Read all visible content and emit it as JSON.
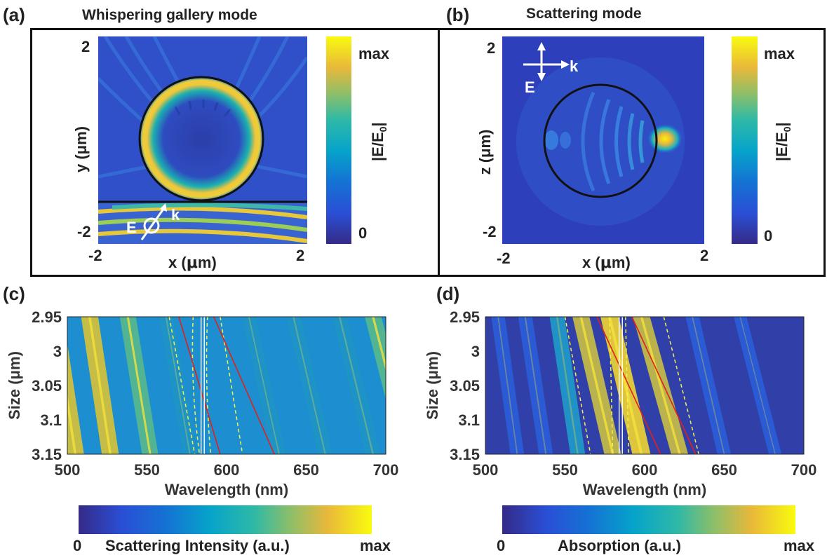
{
  "panel_a": {
    "label": "(a)",
    "title": "Whispering gallery mode",
    "xlabel_prefix": "x (",
    "xlabel_mu": "μ",
    "xlabel_suffix": "m)",
    "ylabel": "y (μm)",
    "x_ticks": [
      "-2",
      "2"
    ],
    "y_ticks": [
      "2",
      "-2"
    ],
    "field_labels": {
      "E": "E",
      "k": "k"
    },
    "colorbar": {
      "max": "max",
      "min": "0",
      "label_main": "|E/E",
      "label_sub": "0",
      "label_end": "|"
    }
  },
  "panel_b": {
    "label": "(b)",
    "title": "Scattering mode",
    "xlabel_prefix": "x (",
    "xlabel_mu": "μ",
    "xlabel_suffix": "m)",
    "ylabel": "z (μm)",
    "x_ticks": [
      "-2",
      "2"
    ],
    "y_ticks": [
      "2",
      "-2"
    ],
    "field_labels": {
      "E": "E",
      "k": "k"
    },
    "colorbar": {
      "max": "max",
      "min": "0",
      "label_main": "|E/E",
      "label_sub": "0",
      "label_end": "|"
    }
  },
  "panel_c": {
    "label": "(c)",
    "colorbar_min": "0",
    "colorbar_label": "Scattering Intensity (a.u.)",
    "colorbar_max": "max"
  },
  "panel_d": {
    "label": "(d)",
    "colorbar_min": "0",
    "colorbar_label": "Absorption (a.u.)",
    "colorbar_max": "max"
  },
  "colors": {
    "viridis_low": "#3b2f8f",
    "viridis_mid": "#1fa3b5",
    "viridis_high": "#f9f30a",
    "red_line": "#e0201a",
    "yellow_dash": "#f6f04a",
    "white_line": "#ffffff"
  },
  "chart_data": [
    {
      "type": "heatmap",
      "panel": "(c)",
      "xlabel": "Wavelength (nm)",
      "ylabel": "Size (μm)",
      "xlim": [
        500,
        700
      ],
      "ylim": [
        2.95,
        3.15
      ],
      "x_ticks": [
        "500",
        "550",
        "600",
        "650",
        "700"
      ],
      "y_ticks": [
        "2.95",
        "3",
        "3.05",
        "3.1",
        "3.15"
      ],
      "bands": [
        {
          "wl_top": 492,
          "wl_bottom": 505,
          "strength": 0.9
        },
        {
          "wl_top": 514,
          "wl_bottom": 527,
          "strength": 0.85
        },
        {
          "wl_top": 538,
          "wl_bottom": 552,
          "strength": 0.75
        },
        {
          "wl_top": 562,
          "wl_bottom": 577,
          "strength": 0.45
        },
        {
          "wl_top": 614,
          "wl_bottom": 633,
          "strength": 0.45
        },
        {
          "wl_top": 642,
          "wl_bottom": 662,
          "strength": 0.5
        },
        {
          "wl_top": 671,
          "wl_bottom": 692,
          "strength": 0.55
        },
        {
          "wl_top": 692,
          "wl_bottom": 714,
          "strength": 0.8
        }
      ],
      "red_lines": [
        {
          "wl_top": 570,
          "wl_bottom": 596
        },
        {
          "wl_top": 592,
          "wl_bottom": 630
        }
      ],
      "yellow_dashed_lines": [
        {
          "wl_top": 564,
          "wl_bottom": 580
        },
        {
          "wl_top": 579,
          "wl_bottom": 583,
          "curved": true
        },
        {
          "wl_top": 588,
          "wl_bottom": 590,
          "curved": true
        },
        {
          "wl_top": 596,
          "wl_bottom": 610
        }
      ],
      "white_lines": [
        584,
        586
      ]
    },
    {
      "type": "heatmap",
      "panel": "(d)",
      "xlabel": "Wavelength (nm)",
      "ylabel": "Size (μm)",
      "xlim": [
        500,
        700
      ],
      "ylim": [
        2.95,
        3.15
      ],
      "x_ticks": [
        "500",
        "550",
        "600",
        "650",
        "700"
      ],
      "y_ticks": [
        "2.95",
        "3",
        "3.05",
        "3.1",
        "3.15"
      ],
      "bands": [
        {
          "wl_top": 508,
          "wl_bottom": 520,
          "strength": 0.45
        },
        {
          "wl_top": 525,
          "wl_bottom": 538,
          "strength": 0.5
        },
        {
          "wl_top": 545,
          "wl_bottom": 558,
          "strength": 0.6
        },
        {
          "wl_top": 560,
          "wl_bottom": 580,
          "strength": 0.85
        },
        {
          "wl_top": 578,
          "wl_bottom": 598,
          "strength": 1.0
        },
        {
          "wl_top": 598,
          "wl_bottom": 622,
          "strength": 0.85
        },
        {
          "wl_top": 630,
          "wl_bottom": 650,
          "strength": 0.45
        },
        {
          "wl_top": 660,
          "wl_bottom": 682,
          "strength": 0.35
        }
      ],
      "red_lines": [
        {
          "wl_top": 570,
          "wl_bottom": 610
        },
        {
          "wl_top": 592,
          "wl_bottom": 632
        }
      ],
      "yellow_dashed_lines": [
        {
          "wl_top": 550,
          "wl_bottom": 566
        },
        {
          "wl_top": 578,
          "wl_bottom": 580
        },
        {
          "wl_top": 588,
          "wl_bottom": 590
        },
        {
          "wl_top": 612,
          "wl_bottom": 634
        }
      ],
      "white_lines": [
        584,
        586
      ]
    }
  ]
}
